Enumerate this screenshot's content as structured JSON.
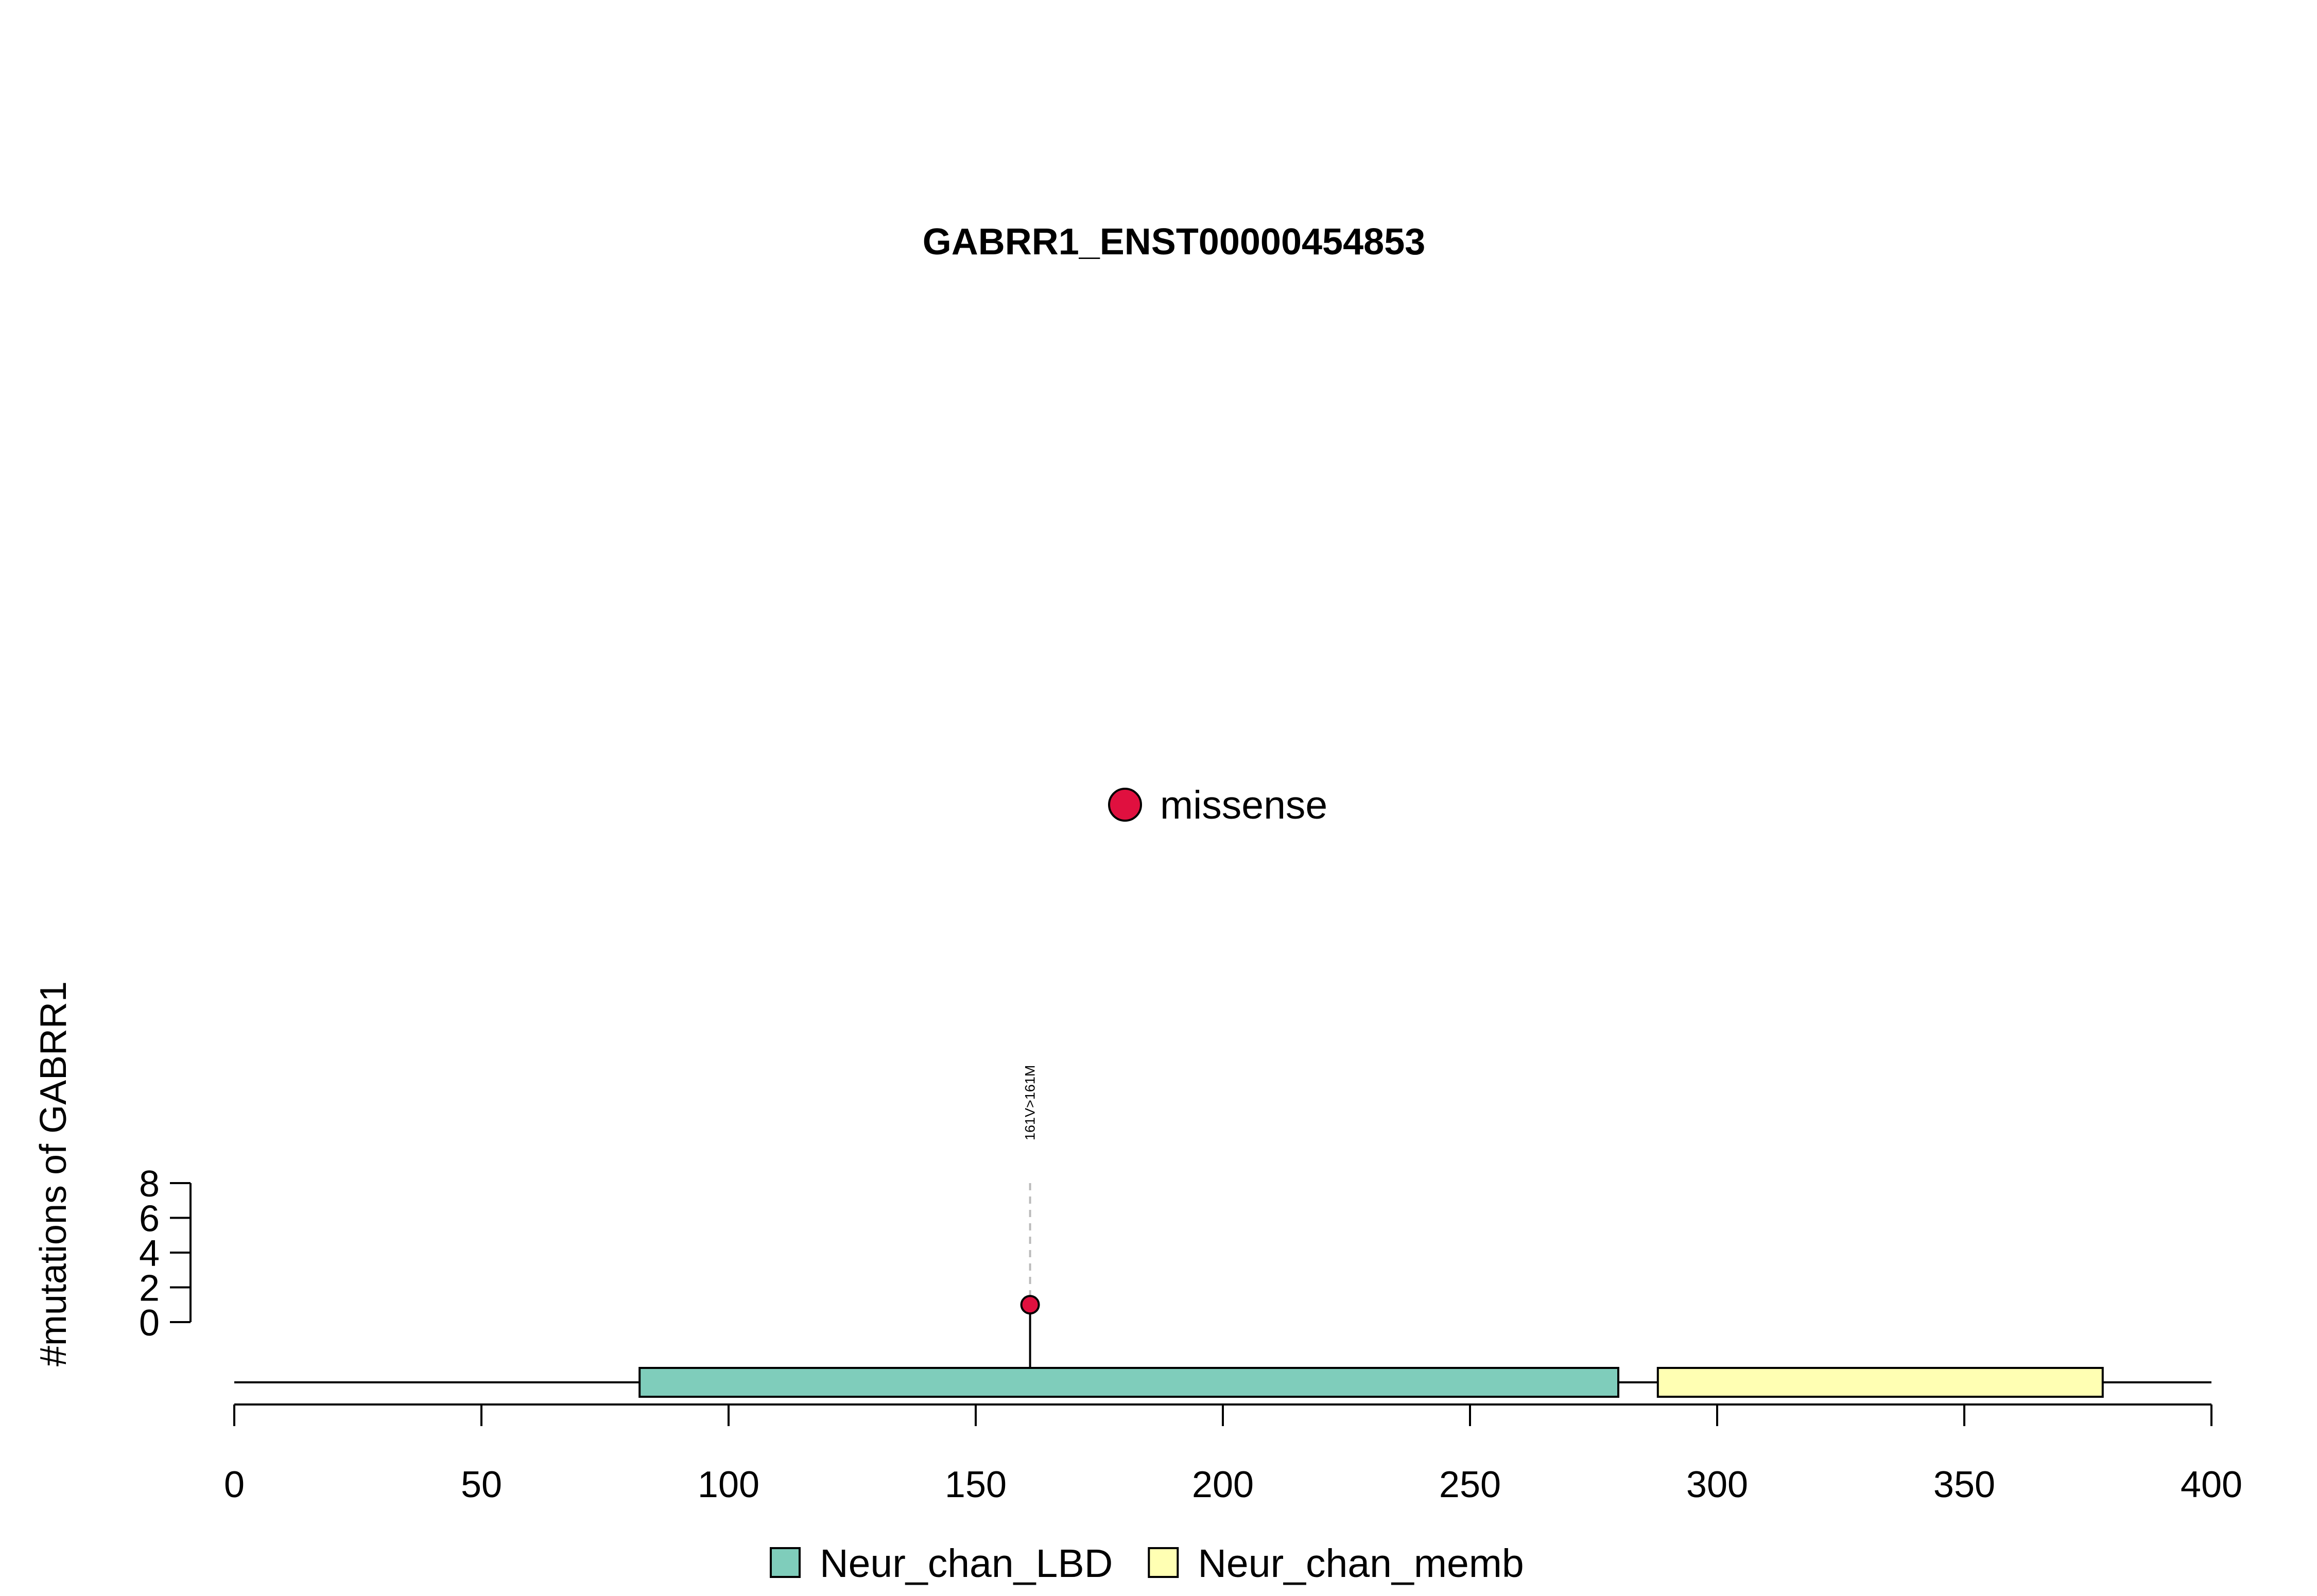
{
  "chart_data": {
    "type": "lollipop",
    "title": "GABRR1_ENST00000454853",
    "xlabel": "",
    "ylabel": "#mutations of GABRR1",
    "xlim": [
      0,
      400
    ],
    "x_ticks": [
      0,
      50,
      100,
      150,
      200,
      250,
      300,
      350,
      400
    ],
    "ylim": [
      0,
      8
    ],
    "y_ticks": [
      0,
      2,
      4,
      6,
      8
    ],
    "protein_length": 400,
    "domains": [
      {
        "name": "Neur_chan_LBD",
        "start": 82,
        "end": 280,
        "color": "#7fcdbb"
      },
      {
        "name": "Neur_chan_memb",
        "start": 288,
        "end": 378,
        "color": "#ffffb3"
      }
    ],
    "mutations": [
      {
        "position": 161,
        "count": 1,
        "label": "161V>161M",
        "type": "missense"
      }
    ],
    "mutation_types": [
      {
        "name": "missense",
        "color": "#e0103f"
      }
    ]
  }
}
